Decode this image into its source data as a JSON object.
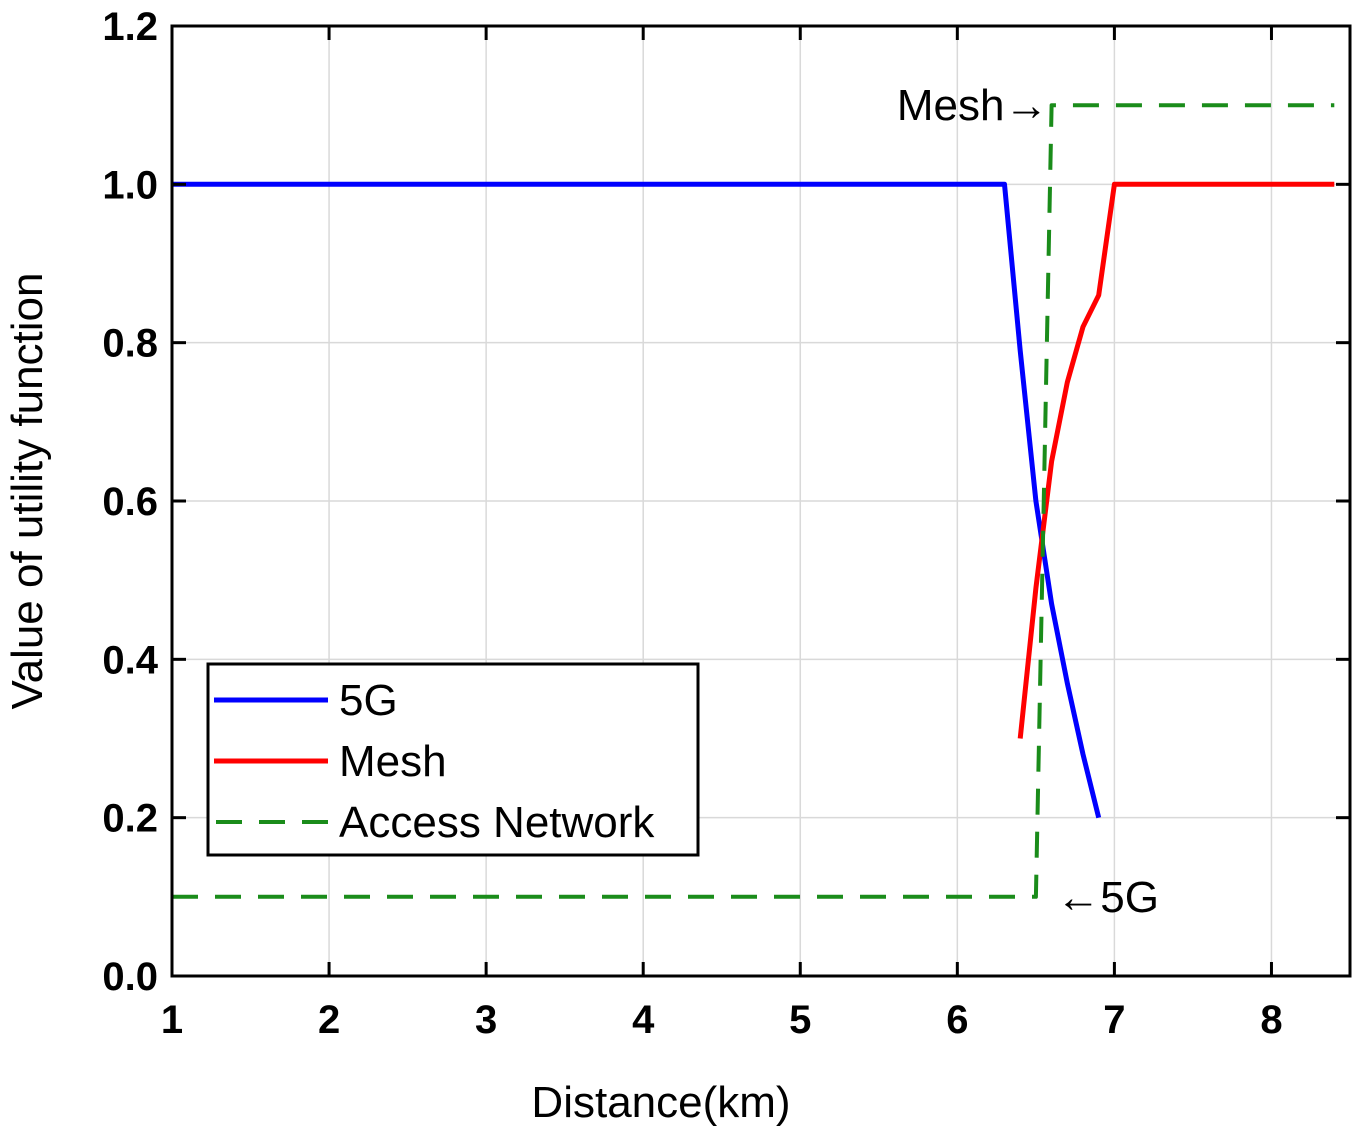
{
  "chart_data": {
    "type": "line",
    "title": "",
    "xlabel": "Distance(km)",
    "ylabel": "Value of utility function",
    "xlim": [
      1,
      8.5
    ],
    "ylim": [
      0,
      1.2
    ],
    "xticks": [
      1,
      2,
      3,
      4,
      5,
      6,
      7,
      8
    ],
    "yticks": [
      0.0,
      0.2,
      0.4,
      0.6,
      0.8,
      1.0,
      1.2
    ],
    "ytick_labels": [
      "0.0",
      "0.2",
      "0.4",
      "0.6",
      "0.8",
      "1.0",
      "1.2"
    ],
    "grid": true,
    "legend_position": "lower-left",
    "series": [
      {
        "name": "5G",
        "color": "#0000ff",
        "style": "solid",
        "x": [
          1.0,
          6.3,
          6.4,
          6.5,
          6.6,
          6.7,
          6.8,
          6.9
        ],
        "y": [
          1.0,
          1.0,
          0.79,
          0.6,
          0.47,
          0.37,
          0.28,
          0.2
        ]
      },
      {
        "name": "Mesh",
        "color": "#ff0000",
        "style": "solid",
        "x": [
          6.4,
          6.5,
          6.6,
          6.7,
          6.8,
          6.9,
          7.0,
          8.4
        ],
        "y": [
          0.3,
          0.49,
          0.65,
          0.75,
          0.82,
          0.86,
          1.0,
          1.0
        ]
      },
      {
        "name": "Access Network",
        "color": "#1a8c1a",
        "style": "dashed",
        "x": [
          1.0,
          6.5,
          6.6,
          8.4
        ],
        "y": [
          0.1,
          0.1,
          1.1,
          1.1
        ]
      }
    ],
    "annotations": [
      {
        "text": "Mesh→",
        "x": 6.58,
        "y": 1.1,
        "anchor": "end"
      },
      {
        "text": "←5G",
        "x": 6.63,
        "y": 0.1,
        "anchor": "start"
      }
    ]
  }
}
